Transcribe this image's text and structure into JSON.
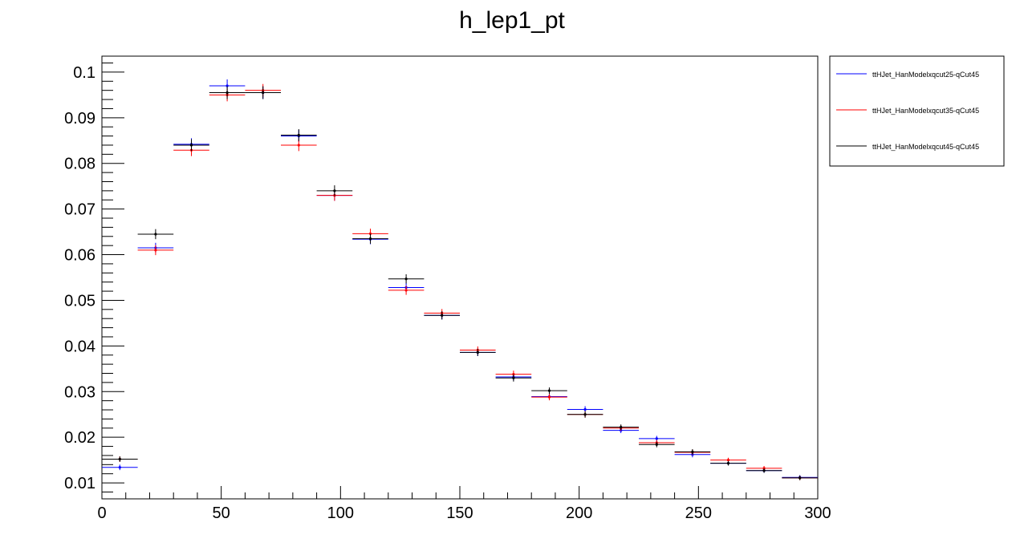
{
  "chart_data": {
    "type": "scatter",
    "title": "h_lep1_pt",
    "xlabel": "",
    "ylabel": "",
    "xlim": [
      0,
      300
    ],
    "ylim": [
      0.0065,
      0.1035
    ],
    "x_ticks": [
      0,
      50,
      100,
      150,
      200,
      250,
      300
    ],
    "x_tick_labels": [
      "0",
      "50",
      "100",
      "150",
      "200",
      "250",
      "300"
    ],
    "y_ticks": [
      0.01,
      0.02,
      0.03,
      0.04,
      0.05,
      0.06,
      0.07,
      0.08,
      0.09,
      0.1
    ],
    "y_tick_labels": [
      "0.01",
      "0.02",
      "0.03",
      "0.04",
      "0.05",
      "0.06",
      "0.07",
      "0.08",
      "0.09",
      "0.1"
    ],
    "grid": false,
    "legend_position": "right",
    "bin_width": 15,
    "x": [
      7.5,
      22.5,
      37.5,
      52.5,
      67.5,
      82.5,
      97.5,
      112.5,
      127.5,
      142.5,
      157.5,
      172.5,
      187.5,
      202.5,
      217.5,
      232.5,
      247.5,
      262.5,
      277.5,
      292.5
    ],
    "series": [
      {
        "name": "ttHJet_HanModelxqcut25-qCut45",
        "color": "#0000ff",
        "values": [
          0.0134,
          0.0615,
          0.0842,
          0.097,
          0.0955,
          0.086,
          0.073,
          0.0634,
          0.0528,
          0.0467,
          0.0386,
          0.0332,
          0.0289,
          0.0261,
          0.0215,
          0.0197,
          0.0162,
          0.0143,
          0.0127,
          0.0112
        ],
        "errors": [
          0.0006,
          0.0011,
          0.0013,
          0.0014,
          0.0014,
          0.0013,
          0.0012,
          0.0011,
          0.001,
          0.0009,
          0.0008,
          0.0008,
          0.0007,
          0.0007,
          0.0006,
          0.0006,
          0.0006,
          0.0005,
          0.0005,
          0.0005
        ]
      },
      {
        "name": "ttHJet_HanModelxqcut35-qCut45",
        "color": "#ff0000",
        "values": [
          0.0152,
          0.061,
          0.0829,
          0.095,
          0.096,
          0.084,
          0.073,
          0.0646,
          0.0522,
          0.0472,
          0.0391,
          0.0338,
          0.0288,
          0.025,
          0.022,
          0.0188,
          0.0167,
          0.015,
          0.0132,
          0.0111
        ],
        "errors": [
          0.0006,
          0.0011,
          0.0013,
          0.0014,
          0.0014,
          0.0013,
          0.0012,
          0.0011,
          0.001,
          0.0009,
          0.0008,
          0.0008,
          0.0007,
          0.0007,
          0.0006,
          0.0006,
          0.0006,
          0.0005,
          0.0005,
          0.0005
        ]
      },
      {
        "name": "ttHJet_HanModelxqcut45-qCut45",
        "color": "#000000",
        "values": [
          0.0152,
          0.0645,
          0.084,
          0.0955,
          0.0955,
          0.0862,
          0.074,
          0.0635,
          0.0547,
          0.0467,
          0.0386,
          0.033,
          0.0302,
          0.025,
          0.0222,
          0.0184,
          0.0168,
          0.0143,
          0.0127,
          0.0111
        ],
        "errors": [
          0.0006,
          0.0011,
          0.0013,
          0.0014,
          0.0014,
          0.0013,
          0.0012,
          0.0011,
          0.001,
          0.0009,
          0.0008,
          0.0008,
          0.0007,
          0.0007,
          0.0006,
          0.0006,
          0.0006,
          0.0005,
          0.0005,
          0.0005
        ]
      }
    ]
  }
}
